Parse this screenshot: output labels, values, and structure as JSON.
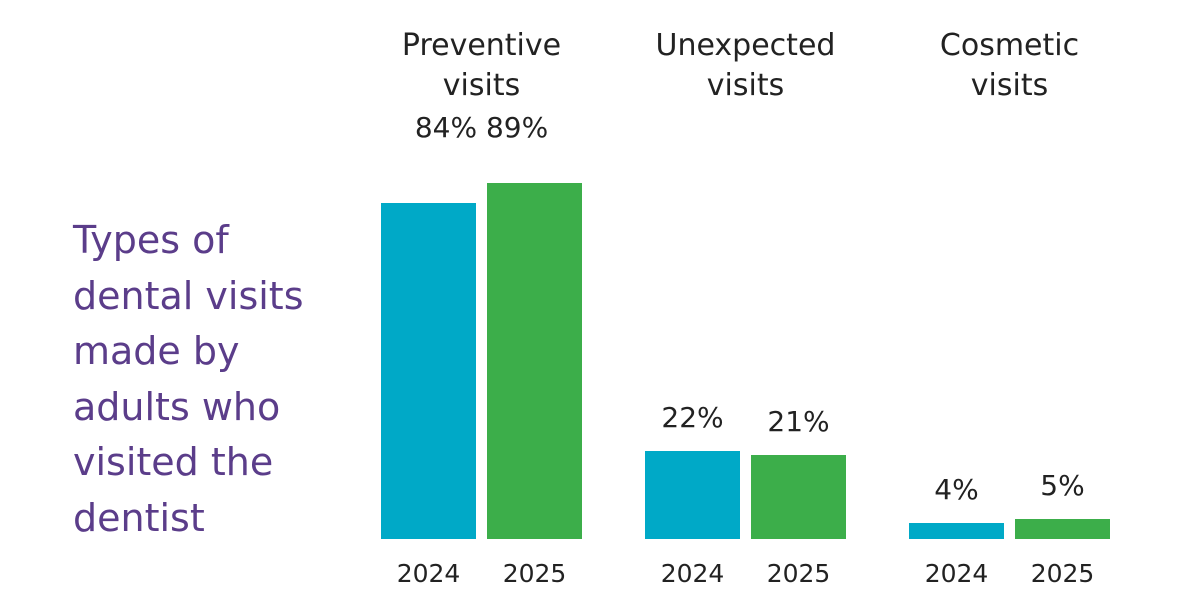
{
  "chart_data": {
    "type": "bar",
    "title": "Types of dental visits made by adults who visited the dentist",
    "title_color": "#5b3d8a",
    "categories": [
      "Preventive visits",
      "Unexpected visits",
      "Cosmetic visits"
    ],
    "value_suffix": "%",
    "ylim": [
      0,
      100
    ],
    "grid": false,
    "legend": "none",
    "series": [
      {
        "name": "2024",
        "color": "#00a9c7",
        "values": [
          84,
          22,
          4
        ]
      },
      {
        "name": "2025",
        "color": "#3cae4a",
        "values": [
          89,
          21,
          5
        ]
      }
    ]
  }
}
